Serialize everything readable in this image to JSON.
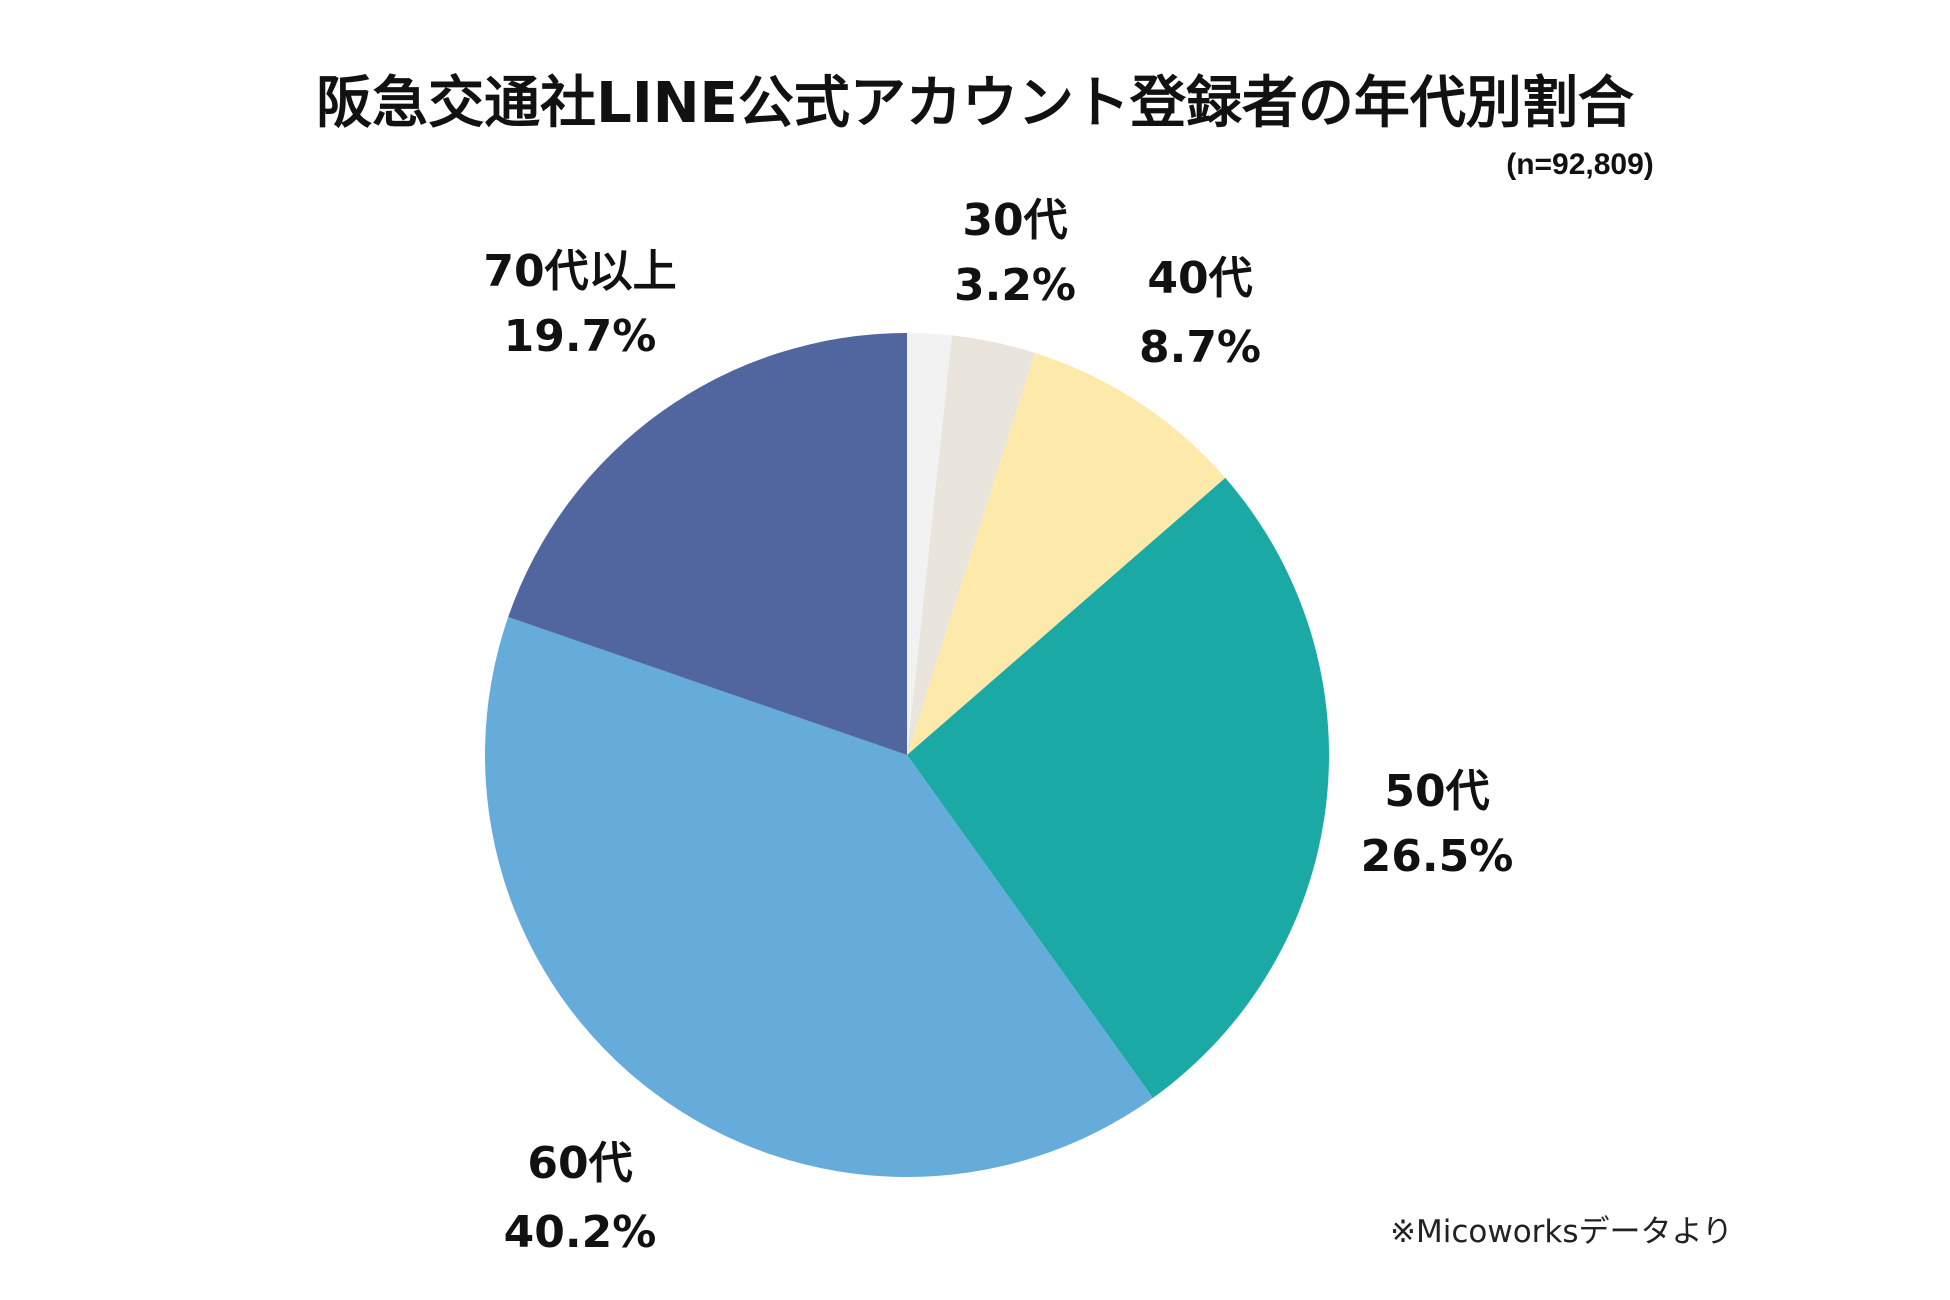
{
  "title": "阪急交通社LINE公式アカウント登録者の年代別割合",
  "sample_note": "(n=92,809)",
  "source_note": "※Micoworksデータより",
  "chart_data": {
    "type": "pie",
    "title": "阪急交通社LINE公式アカウント登録者の年代別割合",
    "start_angle_deg": 0,
    "direction": "clockwise",
    "slices": [
      {
        "name": "",
        "value": 1.7,
        "color": "#f2f2f2",
        "display_percent": ""
      },
      {
        "name": "30代",
        "value": 3.2,
        "color": "#e9e4dc",
        "display_percent": "3.2%"
      },
      {
        "name": "40代",
        "value": 8.7,
        "color": "#fde9a9",
        "display_percent": "8.7%"
      },
      {
        "name": "50代",
        "value": 26.5,
        "color": "#1aa9a4",
        "display_percent": "26.5%"
      },
      {
        "name": "60代",
        "value": 40.2,
        "color": "#66acda",
        "display_percent": "40.2%"
      },
      {
        "name": "70代以上",
        "value": 19.7,
        "color": "#51669e",
        "display_percent": "19.7%"
      }
    ]
  }
}
